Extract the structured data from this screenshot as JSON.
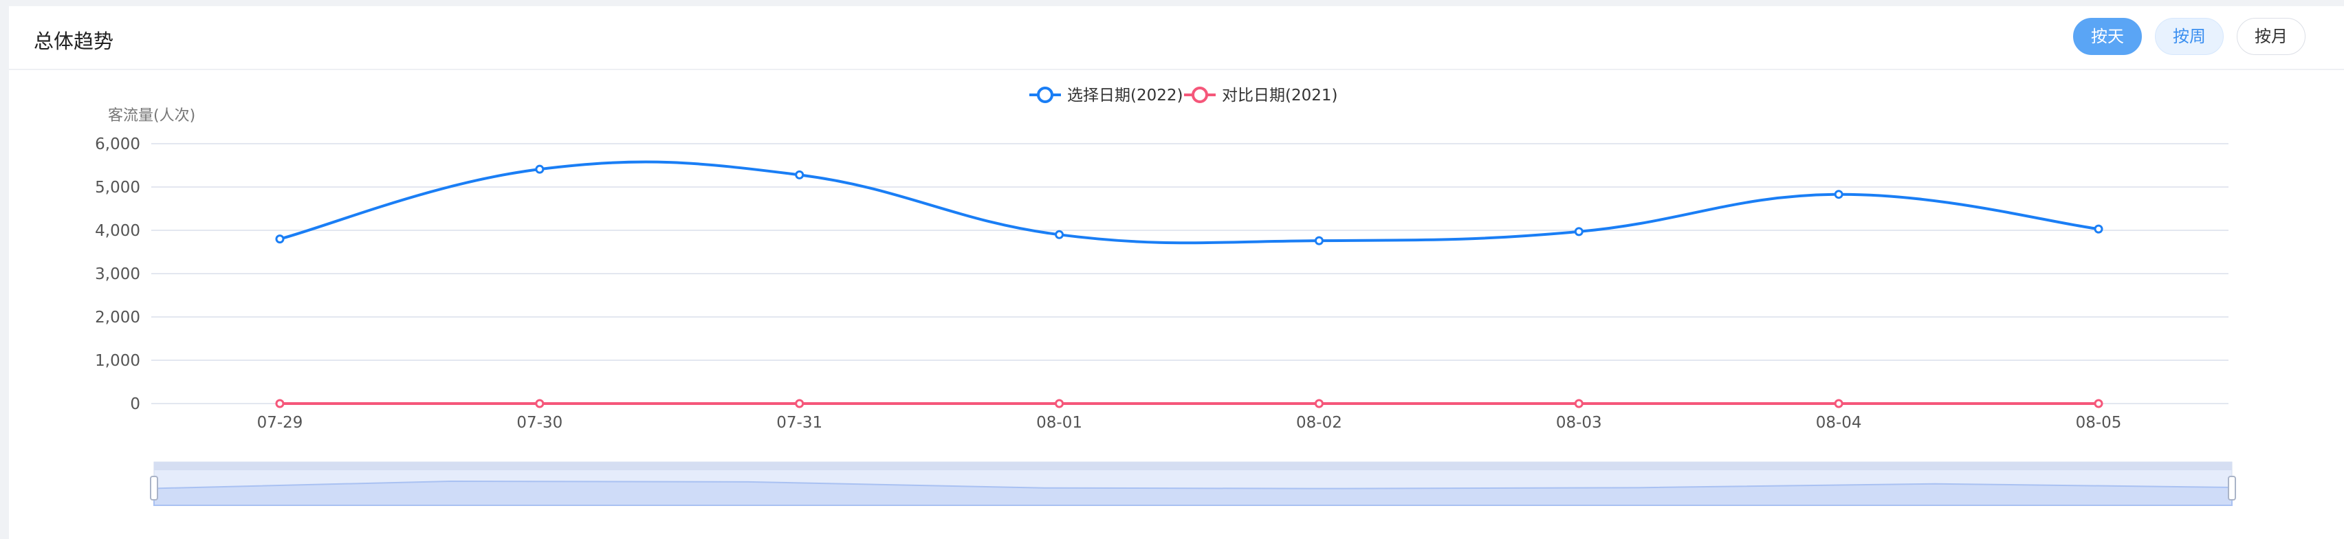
{
  "header": {
    "title": "总体趋势",
    "buttons": [
      "按天",
      "按周",
      "按月"
    ],
    "active": "按天"
  },
  "colors": {
    "series_2022": "#1a7ef5",
    "series_2021": "#f5577a",
    "grid": "#e3e7f0",
    "active_button": "#5aa5f5"
  },
  "chart_data": {
    "type": "line",
    "smooth": true,
    "ylabel": "客流量(人次)",
    "ylim": [
      0,
      6000
    ],
    "yticks": [
      "0",
      "1,000",
      "2,000",
      "3,000",
      "4,000",
      "5,000",
      "6,000"
    ],
    "categories": [
      "07-29",
      "07-30",
      "07-31",
      "08-01",
      "08-02",
      "08-03",
      "08-04",
      "08-05"
    ],
    "series": [
      {
        "name": "选择日期(2022)",
        "values": [
          3800,
          5410,
          5280,
          3900,
          3760,
          3970,
          4830,
          4030
        ]
      },
      {
        "name": "对比日期(2021)",
        "values": [
          0,
          0,
          0,
          0,
          0,
          0,
          0,
          0
        ]
      }
    ],
    "legend": "top-center",
    "grid": true,
    "data_zoom": {
      "start_percent": 0,
      "end_percent": 100
    }
  }
}
